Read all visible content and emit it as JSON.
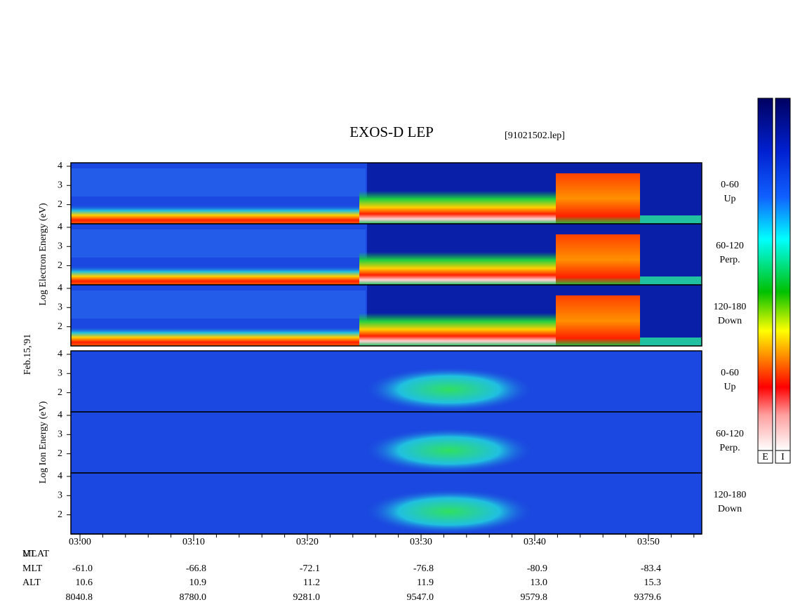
{
  "chart_data": {
    "type": "spectrogram",
    "title": "EXOS-D LEP",
    "file": "[91021502.lep]",
    "date": "Feb.15,'91",
    "ylim": [
      1,
      4.18
    ],
    "yticks": [
      2,
      3,
      4
    ],
    "xticks": [
      "03:00",
      "03:10",
      "03:20",
      "03:30",
      "03:40",
      "03:50"
    ],
    "groups": [
      {
        "ylabel": "Log Electron Energy (eV)",
        "panels": [
          [
            "0-60",
            "Up"
          ],
          [
            "60-120",
            "Perp."
          ],
          [
            "120-180",
            "Down"
          ]
        ]
      },
      {
        "ylabel": "Log Ion Energy (eV)",
        "panels": [
          [
            "0-60",
            "Up"
          ],
          [
            "60-120",
            "Perp."
          ],
          [
            "120-180",
            "Down"
          ]
        ]
      }
    ],
    "ephemeris": {
      "labels": [
        "UT",
        "MLAT",
        "MLT",
        "ALT"
      ],
      "rows": [
        [
          "-61.0",
          "-66.8",
          "-72.1",
          "-76.8",
          "-80.9",
          "-83.4"
        ],
        [
          "10.6",
          "10.9",
          "11.2",
          "11.9",
          "13.0",
          "15.3"
        ],
        [
          "8040.8",
          "8780.0",
          "9281.0",
          "9547.0",
          "9579.8",
          "9379.6"
        ]
      ]
    },
    "colorbars": [
      "E",
      "I"
    ]
  }
}
